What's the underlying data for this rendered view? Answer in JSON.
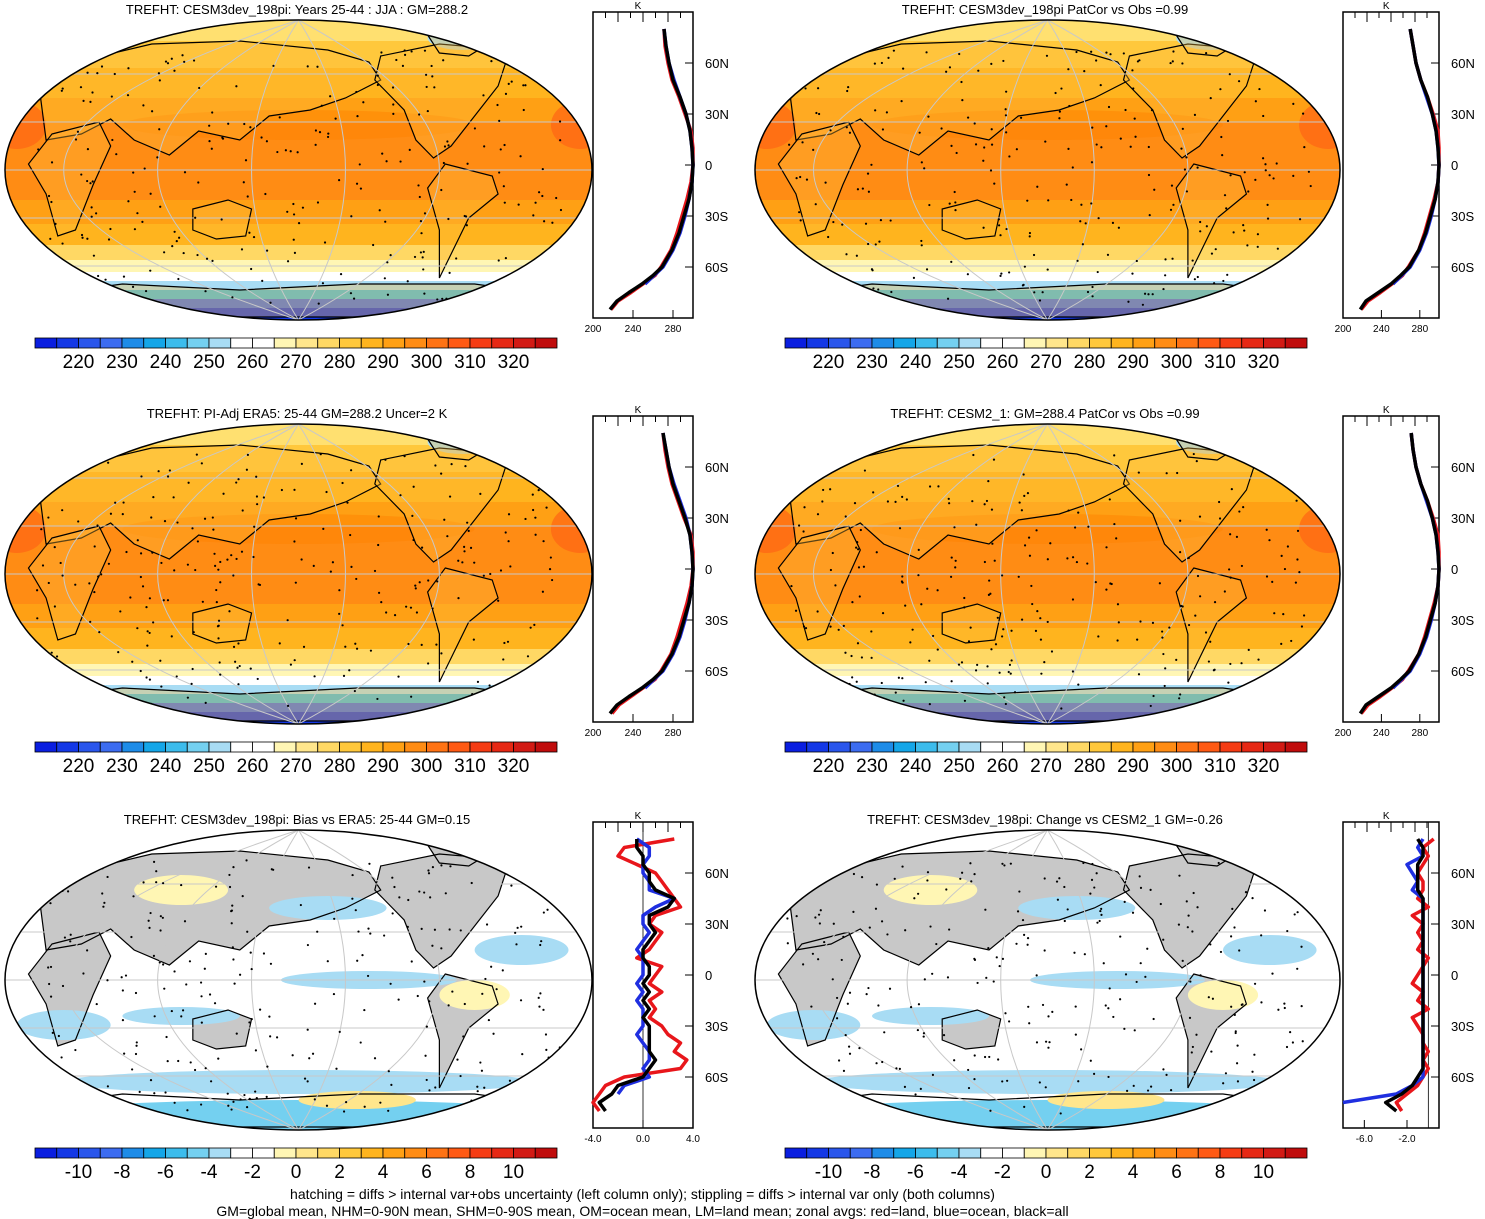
{
  "footer": {
    "line1": "hatching = diffs > internal var+obs uncertainty (left column only); stippling = diffs > internal var only (both columns)",
    "line2": "GM=global mean, NHM=0-90N mean, SHM=0-90S mean, OM=ocean mean, LM=land mean; zonal avgs: red=land, blue=ocean, black=all"
  },
  "colors": {
    "land": "#e8161b",
    "ocean": "#1f2fe0",
    "all": "#000000",
    "missing": "#c8c8c8"
  },
  "profile_axis": {
    "units": "K",
    "lat_labels": [
      "60N",
      "30N",
      "0",
      "30S",
      "60S"
    ]
  },
  "colorbars": {
    "absolute": {
      "labels": [
        "220",
        "230",
        "240",
        "250",
        "260",
        "270",
        "280",
        "290",
        "300",
        "310",
        "320"
      ],
      "colors": [
        "#0a1ee0",
        "#1438e6",
        "#2a56ec",
        "#3c6cf0",
        "#1e8ce8",
        "#14a6e8",
        "#3cbcec",
        "#74d0f0",
        "#a8dcf4",
        "#ffffff",
        "#ffffff",
        "#fff6b4",
        "#ffe68c",
        "#ffd864",
        "#ffc83c",
        "#ffb41e",
        "#ffa014",
        "#ff8c14",
        "#ff7314",
        "#ff5a14",
        "#f53c14",
        "#e62814",
        "#d21a14",
        "#c00c0c"
      ]
    },
    "difference": {
      "labels": [
        "-10",
        "-8",
        "-6",
        "-4",
        "-2",
        "0",
        "2",
        "4",
        "6",
        "8",
        "10"
      ],
      "colors": [
        "#0a1ee0",
        "#1438e6",
        "#2a56ec",
        "#3c6cf0",
        "#1e8ce8",
        "#14a6e8",
        "#3cbcec",
        "#74d0f0",
        "#a8dcf4",
        "#ffffff",
        "#ffffff",
        "#fff6b4",
        "#ffe68c",
        "#ffd864",
        "#ffc83c",
        "#ffb41e",
        "#ffa014",
        "#ff8c14",
        "#ff7314",
        "#ff5a14",
        "#f53c14",
        "#e62814",
        "#d21a14",
        "#c00c0c"
      ]
    }
  },
  "chart_data": [
    {
      "type": "heatmap",
      "title": "TREFHT: CESM3dev_198pi: Years 25-44 : JJA : GM=288.2",
      "colorbar": "absolute",
      "zonal_profile": {
        "type": "line",
        "xticks": [
          "200",
          "240",
          "280"
        ],
        "xlim": [
          200,
          300
        ],
        "lat": [
          80,
          70,
          60,
          50,
          40,
          30,
          20,
          10,
          0,
          -10,
          -20,
          -30,
          -40,
          -50,
          -60,
          -65,
          -70,
          -75,
          -80,
          -85
        ],
        "series": [
          {
            "name": "land",
            "values": [
              271,
              272,
              275,
              279,
              286,
              292,
              298,
              300,
              300,
              298,
              294,
              289,
              284,
              278,
              268,
              262,
              250,
              238,
              225,
              218
            ]
          },
          {
            "name": "ocean",
            "values": [
              271,
              273,
              276,
              281,
              287,
              293,
              297,
              299,
              300,
              299,
              296,
              292,
              287,
              280,
              270,
              261,
              252,
              null,
              null,
              null
            ]
          },
          {
            "name": "all",
            "values": [
              271,
              273,
              276,
              280,
              287,
              293,
              297,
              299,
              300,
              299,
              296,
              291,
              286,
              279,
              269,
              260,
              249,
              236,
              224,
              217
            ]
          }
        ]
      }
    },
    {
      "type": "heatmap",
      "title": "TREFHT: CESM3dev_198pi PatCor vs Obs =0.99",
      "colorbar": "absolute",
      "zonal_profile": {
        "type": "line",
        "xticks": [
          "200",
          "240",
          "280"
        ],
        "xlim": [
          200,
          300
        ],
        "lat": [
          80,
          70,
          60,
          50,
          40,
          30,
          20,
          10,
          0,
          -10,
          -20,
          -30,
          -40,
          -50,
          -60,
          -65,
          -70,
          -75,
          -80,
          -85
        ],
        "series": [
          {
            "name": "land",
            "values": [
              270,
              273,
              276,
              281,
              288,
              294,
              299,
              300,
              300,
              299,
              295,
              290,
              285,
              279,
              268,
              262,
              251,
              239,
              226,
              219
            ]
          },
          {
            "name": "ocean",
            "values": [
              270,
              273,
              276,
              281,
              287,
              293,
              297,
              299,
              300,
              299,
              296,
              292,
              287,
              280,
              270,
              261,
              252,
              null,
              null,
              null
            ]
          },
          {
            "name": "all",
            "values": [
              270,
              273,
              276,
              281,
              288,
              293,
              297,
              299,
              300,
              299,
              296,
              291,
              286,
              279,
              269,
              260,
              250,
              237,
              224,
              218
            ]
          }
        ]
      }
    },
    {
      "type": "heatmap",
      "title": "TREFHT: PI-Adj ERA5: 25-44 GM=288.2 Uncer=2 K",
      "colorbar": "absolute",
      "zonal_profile": {
        "type": "line",
        "xticks": [
          "200",
          "240",
          "280"
        ],
        "xlim": [
          200,
          300
        ],
        "lat": [
          80,
          70,
          60,
          50,
          40,
          30,
          20,
          10,
          0,
          -10,
          -20,
          -30,
          -40,
          -50,
          -60,
          -65,
          -70,
          -75,
          -80,
          -85
        ],
        "series": [
          {
            "name": "land",
            "values": [
              270,
              272,
              275,
              279,
              285,
              291,
              298,
              300,
              300,
              298,
              294,
              289,
              284,
              278,
              268,
              262,
              250,
              238,
              226,
              219
            ]
          },
          {
            "name": "ocean",
            "values": [
              270,
              273,
              276,
              281,
              287,
              293,
              297,
              299,
              300,
              299,
              296,
              292,
              287,
              280,
              270,
              261,
              252,
              null,
              null,
              null
            ]
          },
          {
            "name": "all",
            "values": [
              270,
              273,
              276,
              280,
              286,
              292,
              297,
              299,
              300,
              299,
              296,
              291,
              286,
              279,
              269,
              260,
              249,
              236,
              224,
              217
            ]
          }
        ]
      }
    },
    {
      "type": "heatmap",
      "title": "TREFHT: CESM2_1: GM=288.4 PatCor vs Obs =0.99",
      "colorbar": "absolute",
      "zonal_profile": {
        "type": "line",
        "xticks": [
          "200",
          "240",
          "280"
        ],
        "xlim": [
          200,
          300
        ],
        "lat": [
          80,
          70,
          60,
          50,
          40,
          30,
          20,
          10,
          0,
          -10,
          -20,
          -30,
          -40,
          -50,
          -60,
          -65,
          -70,
          -75,
          -80,
          -85
        ],
        "series": [
          {
            "name": "land",
            "values": [
              271,
              273,
              276,
              281,
              288,
              294,
              299,
              300,
              300,
              299,
              295,
              290,
              285,
              279,
              268,
              262,
              251,
              239,
              226,
              219
            ]
          },
          {
            "name": "ocean",
            "values": [
              271,
              273,
              276,
              281,
              287,
              293,
              297,
              299,
              300,
              299,
              296,
              292,
              287,
              280,
              270,
              261,
              252,
              null,
              null,
              null
            ]
          },
          {
            "name": "all",
            "values": [
              271,
              273,
              276,
              281,
              288,
              293,
              297,
              299,
              300,
              299,
              296,
              291,
              286,
              279,
              269,
              260,
              250,
              237,
              224,
              218
            ]
          }
        ]
      }
    },
    {
      "type": "heatmap",
      "title": "TREFHT: CESM3dev_198pi: Bias vs ERA5: 25-44 GM=0.15",
      "colorbar": "difference",
      "zonal_profile": {
        "type": "line",
        "xticks": [
          "-4.0",
          "0.0",
          "4.0"
        ],
        "xlim": [
          -4,
          4
        ],
        "lat": [
          80,
          75,
          70,
          65,
          60,
          55,
          50,
          45,
          40,
          35,
          30,
          25,
          20,
          15,
          10,
          5,
          0,
          -5,
          -10,
          -15,
          -20,
          -25,
          -30,
          -35,
          -40,
          -45,
          -50,
          -55,
          -60,
          -65,
          -70,
          -75,
          -80
        ],
        "series": [
          {
            "name": "land",
            "values": [
              2.5,
              -1.5,
              -2.0,
              -0.5,
              1.0,
              1.5,
              2.0,
              2.5,
              3.0,
              1.0,
              0.5,
              1.5,
              1.0,
              0.5,
              -0.5,
              1.5,
              1.0,
              0.5,
              1.5,
              0.5,
              1.0,
              0.5,
              1.5,
              2.0,
              3.0,
              2.5,
              3.5,
              3.0,
              -1.5,
              -3.0,
              -3.5,
              -4.0,
              -3.5
            ]
          },
          {
            "name": "ocean",
            "values": [
              -0.5,
              0.5,
              0.5,
              0.0,
              0.0,
              0.5,
              0.5,
              2.5,
              1.0,
              0.0,
              0.0,
              0.5,
              0.0,
              -0.5,
              0.0,
              0.0,
              0.0,
              -0.5,
              0.0,
              -0.5,
              0.0,
              0.0,
              0.0,
              -0.5,
              0.0,
              0.5,
              0.5,
              0.0,
              0.5,
              -1.5,
              -2.0,
              null,
              null
            ]
          },
          {
            "name": "all",
            "values": [
              -0.5,
              -0.5,
              0.0,
              0.0,
              0.5,
              0.5,
              1.0,
              2.5,
              2.0,
              0.5,
              0.5,
              1.0,
              0.5,
              0.0,
              0.0,
              0.5,
              0.5,
              0.0,
              0.5,
              0.0,
              0.5,
              0.0,
              0.5,
              0.5,
              0.5,
              0.5,
              1.0,
              0.5,
              0.0,
              -2.0,
              -2.5,
              -3.5,
              -3.0
            ]
          }
        ]
      }
    },
    {
      "type": "heatmap",
      "title": "TREFHT: CESM3dev_198pi: Change vs CESM2_1 GM=-0.26",
      "colorbar": "difference",
      "zonal_profile": {
        "type": "line",
        "xticks": [
          "-6.0",
          "-2.0"
        ],
        "xlim": [
          -8,
          1
        ],
        "lat": [
          80,
          75,
          70,
          65,
          60,
          55,
          50,
          45,
          40,
          35,
          30,
          25,
          20,
          15,
          10,
          5,
          0,
          -5,
          -10,
          -15,
          -20,
          -25,
          -30,
          -35,
          -40,
          -45,
          -50,
          -55,
          -60,
          -65,
          -70,
          -75,
          -80
        ],
        "series": [
          {
            "name": "land",
            "values": [
              0.5,
              -0.5,
              0.0,
              -0.5,
              -1.0,
              -0.5,
              -0.5,
              -1.0,
              0.0,
              -1.5,
              -0.5,
              -1.0,
              -0.5,
              -1.0,
              0.0,
              -0.5,
              -1.0,
              -1.5,
              -0.5,
              -1.0,
              0.0,
              -1.5,
              -1.0,
              -0.5,
              -0.5,
              0.0,
              -0.5,
              0.0,
              -0.5,
              -1.0,
              -2.0,
              -3.0,
              -2.5
            ]
          },
          {
            "name": "ocean",
            "values": [
              -0.5,
              -1.0,
              -0.5,
              -2.0,
              -1.5,
              -1.0,
              -1.5,
              -0.5,
              -0.5,
              -0.5,
              -0.5,
              -0.5,
              -0.5,
              -0.5,
              -0.5,
              -0.5,
              -0.5,
              -0.5,
              -0.5,
              -0.5,
              -0.5,
              -0.5,
              -0.5,
              -0.5,
              -0.5,
              -0.5,
              -0.5,
              -0.5,
              -0.5,
              -1.5,
              -3.0,
              -8.0,
              null
            ]
          },
          {
            "name": "all",
            "values": [
              -1.0,
              -0.5,
              -0.5,
              -1.0,
              -1.0,
              -1.0,
              -1.0,
              -0.5,
              -0.5,
              -0.5,
              -0.5,
              -0.5,
              -0.5,
              -0.5,
              -0.5,
              -0.5,
              -0.5,
              -0.5,
              -0.5,
              -0.5,
              -0.5,
              -0.5,
              -0.5,
              -0.5,
              -0.5,
              -0.5,
              -0.5,
              -0.5,
              -1.0,
              -1.5,
              -2.5,
              -4.0,
              -3.0
            ]
          }
        ]
      }
    }
  ]
}
